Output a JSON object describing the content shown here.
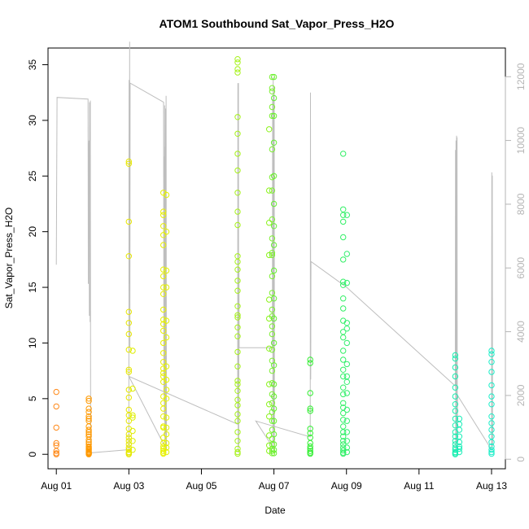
{
  "chart_data": {
    "type": "scatter",
    "title": "ATOM1 Southbound Sat_Vapor_Press_H2O",
    "xlabel": "Date",
    "ylabel": "Sat_Vapor_Press_H2O",
    "x_unit": "days",
    "xlim": [
      "2011-07-31T18:30",
      "2011-08-13T09:10"
    ],
    "ylim": [
      -1.3,
      36.5
    ],
    "y_ticks": [
      0,
      5,
      10,
      15,
      20,
      25,
      30,
      35
    ],
    "x_ticks": [
      {
        "date": "2011-08-01",
        "label": "Aug 01"
      },
      {
        "date": "2011-08-03",
        "label": "Aug 03"
      },
      {
        "date": "2011-08-05",
        "label": "Aug 05"
      },
      {
        "date": "2011-08-07",
        "label": "Aug 07"
      },
      {
        "date": "2011-08-09",
        "label": "Aug 09"
      },
      {
        "date": "2011-08-11",
        "label": "Aug 11"
      },
      {
        "date": "2011-08-13",
        "label": "Aug 13"
      }
    ],
    "y2lim": [
      -300,
      12900
    ],
    "y2_ticks": [
      0,
      2000,
      4000,
      6000,
      8000,
      10000,
      12000
    ],
    "grid": false,
    "point_style": "open circles, colour gradient from orange (Aug 01) to cyan (Aug 13)",
    "line_color": "#bebebe",
    "series": [
      {
        "kind": "points",
        "clusters": [
          {
            "date": "2011-08-01T00:00",
            "color": "#FF8A1A",
            "values": [
              5.6,
              4.3,
              2.4,
              1.0,
              0.8,
              0.3,
              0.1,
              0.0
            ]
          },
          {
            "date": "2011-08-01T21:30",
            "color": "#FF9900",
            "values": [
              5.0,
              4.8,
              4.1,
              3.8,
              3.4,
              3.2,
              3.0,
              2.5,
              2.2,
              2.0,
              1.8,
              1.6,
              1.3,
              1.1,
              0.9,
              0.7,
              0.6,
              0.5,
              0.4,
              0.3,
              0.2,
              0.15,
              0.1,
              0.05,
              0.0
            ]
          },
          {
            "date": "2011-08-03T00:00",
            "color": "#E6E600",
            "values": [
              26.3,
              26.1,
              20.9,
              17.8,
              12.8,
              11.8,
              10.8,
              9.4,
              7.6,
              7.4,
              5.8,
              5.1,
              4.0,
              3.5,
              3.0,
              2.3,
              1.8,
              1.5,
              1.2,
              0.9,
              0.6,
              0.4,
              0.2,
              0.1,
              0.0
            ]
          },
          {
            "date": "2011-08-03T02:30",
            "color": "#DDEE00",
            "values": [
              9.3,
              5.9,
              3.5,
              3.3,
              2.1,
              1.2,
              0.4
            ]
          },
          {
            "date": "2011-08-03T22:50",
            "color": "#E8F000",
            "values": [
              23.5,
              21.8,
              21.5,
              20.5,
              19.7,
              18.8,
              16.6,
              16.0,
              15.0,
              14.4,
              13.0,
              12.1,
              11.7,
              11.1,
              10.0,
              9.1,
              8.3,
              7.7,
              7.3,
              7.0,
              6.5,
              5.2,
              4.6,
              4.1,
              3.4,
              2.5,
              2.4,
              1.5,
              1.0,
              0.7,
              0.5,
              0.3,
              0.15,
              0.05
            ]
          },
          {
            "date": "2011-08-04T00:50",
            "color": "#E2F200",
            "values": [
              23.3,
              20.0,
              16.5,
              15.0,
              12.0,
              10.5,
              7.9,
              6.7,
              5.8,
              5.0,
              3.3,
              2.4,
              1.8,
              1.0,
              0.6,
              0.2
            ]
          },
          {
            "date": "2011-08-06T00:00",
            "color": "#A6F21A",
            "values": [
              35.5,
              35.2,
              34.6,
              34.3,
              30.3,
              28.8,
              27.0,
              25.5,
              23.5,
              21.8,
              20.6,
              17.8,
              17.3,
              16.6,
              15.6,
              14.7,
              13.3,
              12.5,
              12.3,
              11.4,
              10.6,
              9.2,
              7.9,
              6.6,
              6.3,
              5.7,
              4.9,
              4.4,
              3.6,
              3.0,
              2.0,
              1.2,
              0.5,
              0.2,
              0.05
            ]
          },
          {
            "date": "2011-08-06T20:50",
            "color": "#8CF21A",
            "values": [
              29.2,
              23.7,
              20.8,
              17.9,
              13.9,
              12.2,
              9.5,
              6.3,
              4.5,
              3.4,
              1.7,
              0.8,
              0.3
            ]
          },
          {
            "date": "2011-08-06T22:50",
            "color": "#7EF033",
            "values": [
              33.9,
              32.9,
              32.6,
              31.2,
              30.4,
              27.4,
              24.9,
              23.7,
              21.1,
              19.4,
              18.1,
              17.9,
              16.0,
              14.5,
              13.0,
              12.4,
              11.5,
              10.8,
              9.4,
              8.4,
              7.5,
              6.4,
              5.4,
              4.6,
              3.8,
              3.0,
              2.2,
              1.4,
              0.9,
              0.5,
              0.3,
              0.1
            ]
          },
          {
            "date": "2011-08-07T00:00",
            "color": "#66F033",
            "values": [
              33.9,
              32.0,
              30.4,
              28.0,
              25.0,
              22.5,
              20.5,
              18.8,
              16.5,
              14.0,
              12.2,
              10.0,
              8.0,
              6.3,
              5.2,
              4.1,
              3.0,
              1.8,
              0.9,
              0.4,
              0.1
            ]
          },
          {
            "date": "2011-08-08T00:00",
            "color": "#33EE33",
            "values": [
              8.5,
              8.2,
              5.5,
              4.1,
              3.9,
              2.3,
              1.9,
              1.5,
              1.0,
              0.7,
              0.5,
              0.3,
              0.15,
              0.05
            ]
          },
          {
            "date": "2011-08-08T21:50",
            "color": "#33F066",
            "values": [
              27.0,
              22.0,
              21.5,
              20.9,
              19.5,
              17.5,
              15.5,
              15.2,
              14.0,
              13.1,
              12.0,
              11.0,
              10.5,
              9.3,
              8.5,
              7.6,
              7.0,
              6.0,
              5.4,
              4.6,
              4.2,
              3.7,
              3.1,
              2.5,
              2.0,
              1.6,
              1.2,
              0.9,
              0.6,
              0.35,
              0.15,
              0.05
            ]
          },
          {
            "date": "2011-08-09T00:20",
            "color": "#33F070",
            "values": [
              21.5,
              18.0,
              15.4,
              11.8,
              11.3,
              10.0,
              8.1,
              7.0,
              6.5,
              5.5,
              4.0,
              3.0,
              2.0,
              1.2,
              0.6,
              0.2
            ]
          },
          {
            "date": "2011-08-12T00:00",
            "color": "#1AEEB0",
            "values": [
              8.9,
              8.6,
              7.8,
              7.0,
              6.0,
              5.2,
              4.5,
              3.9,
              3.2,
              2.6,
              2.0,
              1.6,
              1.2,
              0.9,
              0.6,
              0.4,
              0.2,
              0.1,
              0.0
            ]
          },
          {
            "date": "2011-08-12T02:40",
            "color": "#1AEEB8",
            "values": [
              3.2,
              2.7,
              2.2,
              1.6,
              1.1,
              0.7,
              0.5,
              0.2
            ]
          },
          {
            "date": "2011-08-13T00:00",
            "color": "#1AEEC8",
            "values": [
              9.3,
              9.0,
              8.3,
              7.4,
              6.2,
              5.2,
              4.5,
              3.4,
              2.8,
              2.2,
              1.6,
              1.1,
              0.7,
              0.4,
              0.2,
              0.05
            ]
          }
        ]
      },
      {
        "kind": "line",
        "axis": "right",
        "color": "#bebebe",
        "points": [
          [
            "2011-08-01T00:00",
            6100
          ],
          [
            "2011-08-01T00:30",
            11350
          ],
          [
            "2011-08-01T21:00",
            11300
          ],
          [
            "2011-08-01T21:10",
            5500
          ],
          [
            "2011-08-01T21:20",
            9500
          ],
          [
            "2011-08-01T21:30",
            9800
          ],
          [
            "2011-08-01T21:40",
            10000
          ],
          [
            "2011-08-01T21:50",
            4500
          ],
          [
            "2011-08-01T22:00",
            11200
          ],
          [
            "2011-08-01T22:10",
            11000
          ],
          [
            "2011-08-01T22:20",
            4300
          ],
          [
            "2011-08-01T22:30",
            11250
          ],
          [
            "2011-08-01T22:40",
            2000
          ],
          [
            "2011-08-01T22:50",
            200
          ],
          [
            "2011-08-03T00:00",
            300
          ],
          [
            "2011-08-03T00:10",
            11900
          ],
          [
            "2011-08-03T00:20",
            5500
          ],
          [
            "2011-08-03T00:30",
            13100
          ],
          [
            "2011-08-03T00:40",
            3500
          ],
          [
            "2011-08-03T00:50",
            11800
          ],
          [
            "2011-08-03T23:00",
            11200
          ],
          [
            "2011-08-03T23:10",
            2000
          ],
          [
            "2011-08-03T23:20",
            9500
          ],
          [
            "2011-08-03T23:30",
            1200
          ],
          [
            "2011-08-03T23:40",
            11100
          ],
          [
            "2011-08-03T23:50",
            600
          ],
          [
            "2011-08-04T00:00",
            9800
          ],
          [
            "2011-08-04T00:10",
            400
          ],
          [
            "2011-08-04T00:20",
            11000
          ],
          [
            "2011-08-04T00:30",
            800
          ],
          [
            "2011-08-04T00:40",
            11400
          ],
          [
            "2011-08-04T00:50",
            300
          ],
          [
            "2011-08-03T00:00",
            2600
          ],
          [
            "2011-08-06T00:00",
            1100
          ],
          [
            "2011-08-06T00:10",
            11800
          ],
          [
            "2011-08-06T00:20",
            200
          ],
          [
            "2011-08-06T00:30",
            11800
          ],
          [
            "2011-08-06T00:40",
            400
          ],
          [
            "2011-08-06T00:50",
            6000
          ],
          [
            "2011-08-06T01:00",
            3500
          ],
          [
            "2011-08-06T23:00",
            3500
          ],
          [
            "2011-08-06T23:10",
            11300
          ],
          [
            "2011-08-06T23:20",
            300
          ],
          [
            "2011-08-06T23:30",
            12000
          ],
          [
            "2011-08-06T23:40",
            500
          ],
          [
            "2011-08-06T23:50",
            11400
          ],
          [
            "2011-08-07T00:00",
            1000
          ],
          [
            "2011-08-07T00:10",
            11700
          ],
          [
            "2011-08-07T00:20",
            300
          ],
          [
            "2011-08-06T12:00",
            1200
          ],
          [
            "2011-08-08T00:00",
            700
          ],
          [
            "2011-08-08T00:10",
            11500
          ],
          [
            "2011-08-08T00:20",
            2500
          ],
          [
            "2011-08-08T00:30",
            6200
          ],
          [
            "2011-08-09T00:00",
            5400
          ],
          [
            "2011-08-12T00:00",
            2300
          ],
          [
            "2011-08-12T00:10",
            9700
          ],
          [
            "2011-08-12T00:20",
            300
          ],
          [
            "2011-08-12T00:30",
            10000
          ],
          [
            "2011-08-12T00:40",
            400
          ],
          [
            "2011-08-12T00:50",
            10150
          ],
          [
            "2011-08-12T01:00",
            500
          ],
          [
            "2011-08-12T01:10",
            10100
          ],
          [
            "2011-08-12T01:20",
            600
          ],
          [
            "2011-08-12T01:30",
            2000
          ],
          [
            "2011-08-13T00:00",
            300
          ],
          [
            "2011-08-13T00:10",
            9000
          ],
          [
            "2011-08-13T00:20",
            400
          ],
          [
            "2011-08-13T00:30",
            8900
          ],
          [
            "2011-08-13T00:40",
            400
          ],
          [
            "2011-08-13T00:50",
            1100
          ]
        ]
      }
    ]
  }
}
